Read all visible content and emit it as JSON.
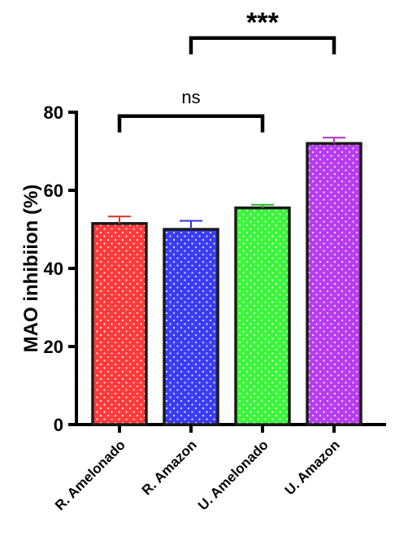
{
  "chart_data": {
    "type": "bar",
    "title": "",
    "xlabel": "",
    "ylabel": "MAO inhibiion (%)",
    "ylim": [
      0,
      80
    ],
    "yticks": [
      0,
      20,
      40,
      60,
      80
    ],
    "categories": [
      "R. Amelonado",
      "R. Amazon",
      "U. Amelonado",
      "U. Amazon"
    ],
    "values": [
      51.5,
      50,
      55.5,
      72
    ],
    "errors": [
      1.8,
      2.2,
      0.8,
      1.5
    ],
    "bar_colors": [
      "#ff3b3b",
      "#3c3cf5",
      "#3cf53c",
      "#b83cf0"
    ],
    "error_colors": [
      "#e53030",
      "#3232e0",
      "#22b822",
      "#b030c8"
    ],
    "pattern": "dotted",
    "grid": false,
    "significance": [
      {
        "from": 0,
        "to": 2,
        "label": "ns",
        "bracket_y": 79
      },
      {
        "from": 1,
        "to": 3,
        "label": "***",
        "bracket_y": 99
      }
    ]
  }
}
